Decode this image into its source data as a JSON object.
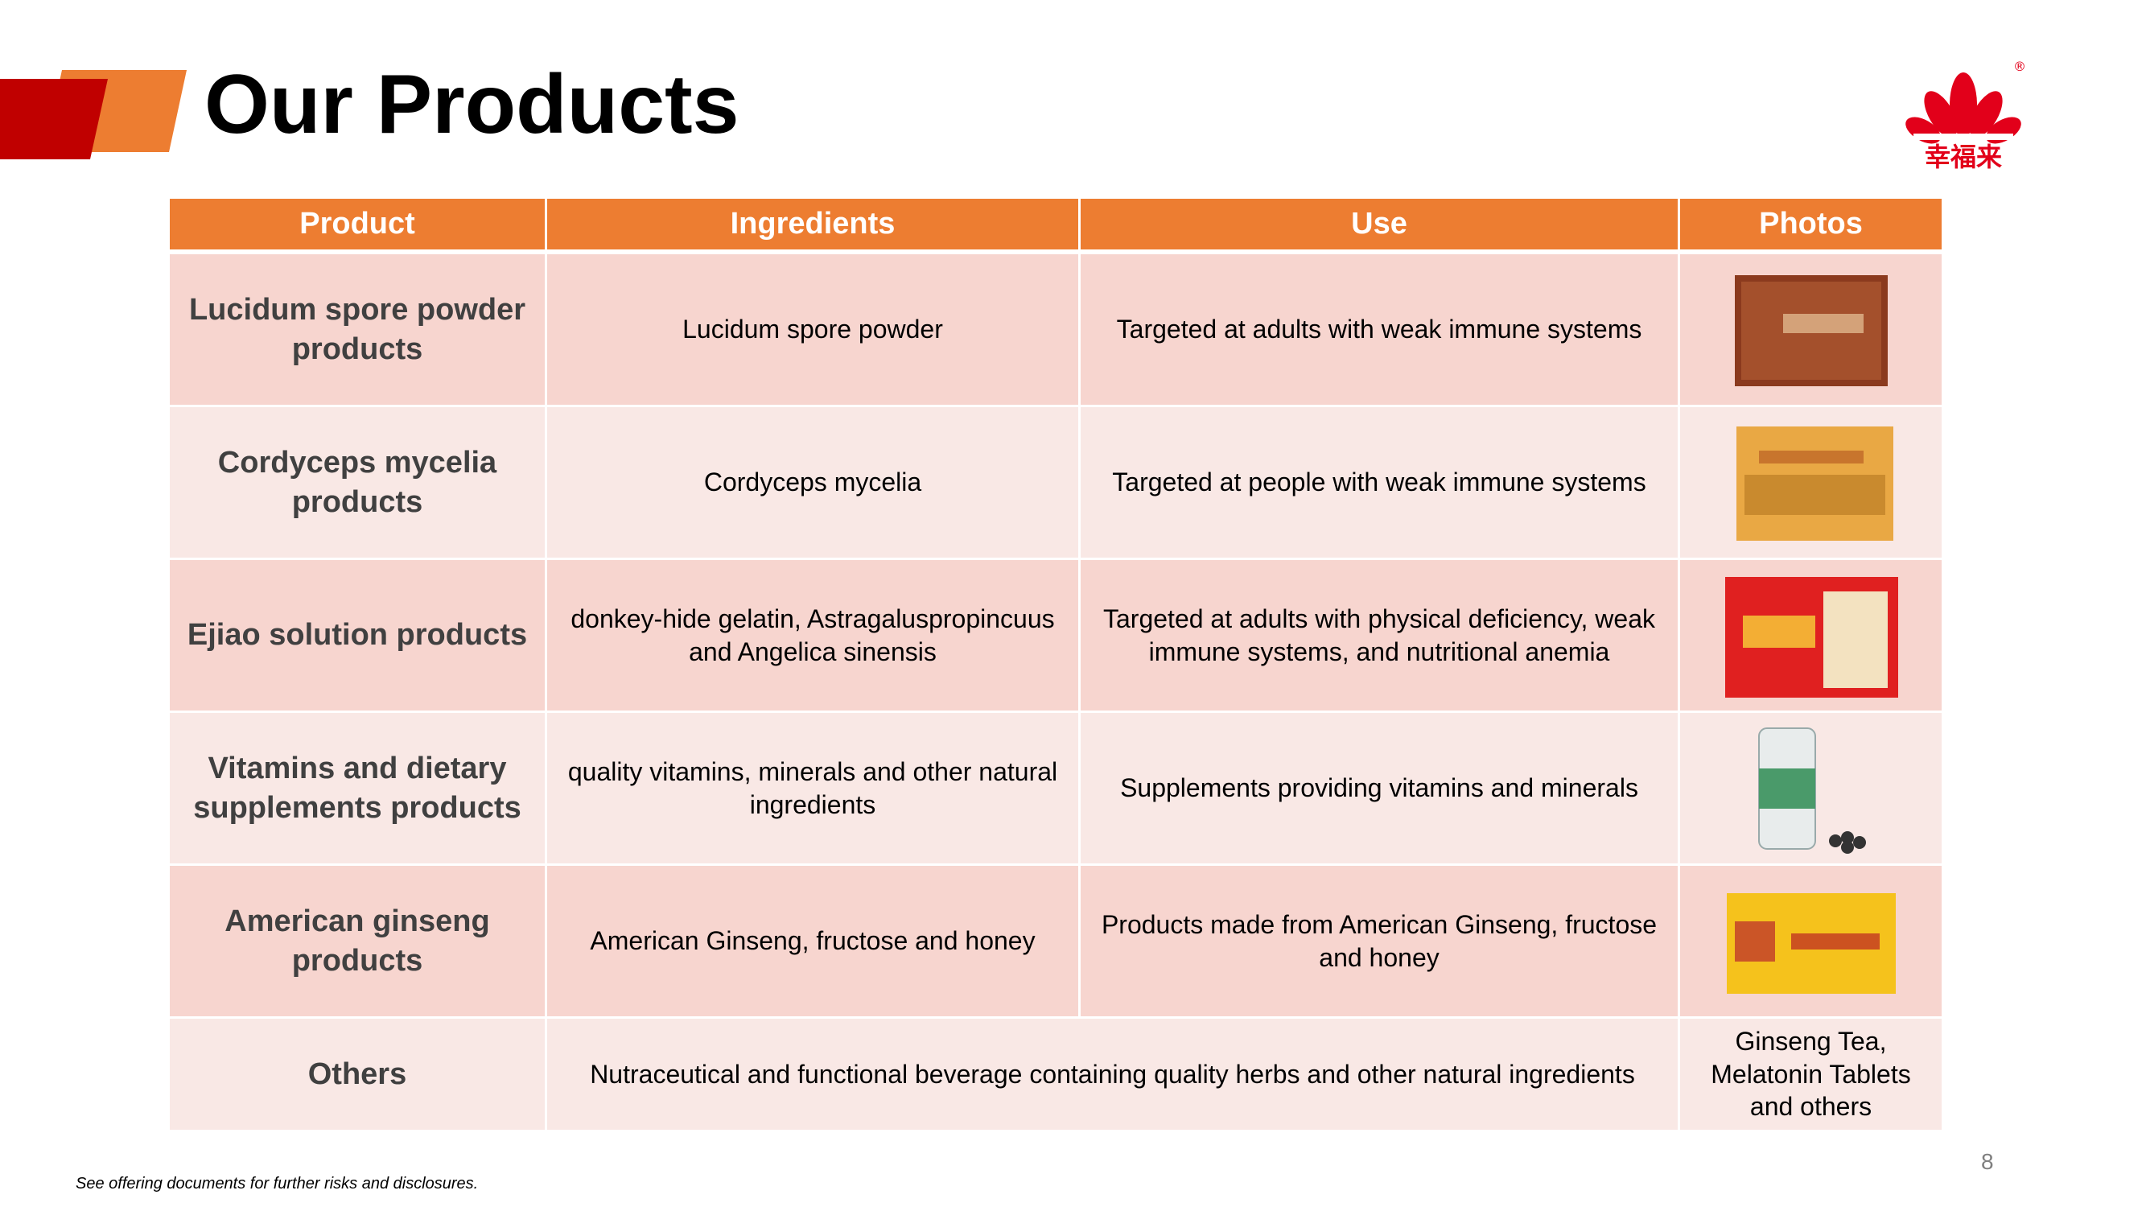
{
  "header": {
    "title": "Our Products",
    "logo_text": "幸福来",
    "logo_mark": "®"
  },
  "table": {
    "columns": [
      "Product",
      "Ingredients",
      "Use",
      "Photos"
    ],
    "rows": [
      [
        "Lucidum spore powder products",
        "Lucidum spore powder",
        "Targeted at adults with weak immune systems"
      ],
      [
        "Cordyceps mycelia products",
        "Cordyceps mycelia",
        "Targeted at people with weak immune systems"
      ],
      [
        "Ejiao solution products",
        "donkey-hide gelatin, Astragaluspropincuus and Angelica sinensis",
        "Targeted at adults with physical deficiency, weak immune systems, and nutritional anemia"
      ],
      [
        "Vitamins and dietary supplements products",
        "quality vitamins, minerals and other natural ingredients",
        "Supplements providing vitamins and minerals"
      ],
      [
        "American ginseng products",
        "American Ginseng, fructose and honey",
        "Products made from American Ginseng, fructose and honey"
      ],
      [
        "Others",
        "Nutraceutical and functional beverage containing quality herbs and other natural ingredients",
        "Ginseng Tea, Melatonin Tablets and others"
      ]
    ]
  },
  "footer": {
    "note": "See offering documents for further risks and disclosures.",
    "page_number": "8"
  }
}
